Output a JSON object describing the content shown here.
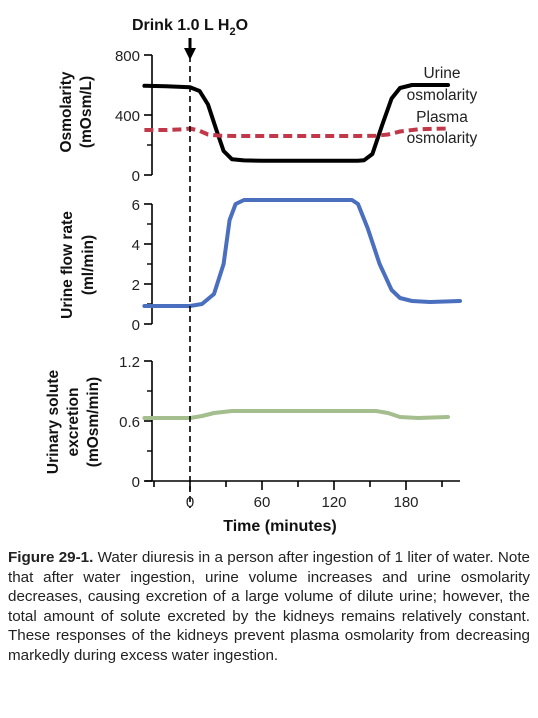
{
  "chart_data": {
    "type": "line",
    "x_label": "Time (minutes)",
    "x_ticks": [
      0,
      60,
      120,
      180
    ],
    "xlim": [
      -40,
      225
    ],
    "annotation": {
      "text": "Drink 1.0 L H",
      "sub": "2",
      "suffix": "O",
      "x": 0
    },
    "panels": [
      {
        "id": "osmolarity",
        "ylabel_lines": [
          "Osmolarity",
          "(mOsm/L)"
        ],
        "ylim": [
          0,
          800
        ],
        "yticks": [
          0,
          400,
          800
        ],
        "series": [
          {
            "name": "Urine osmolarity",
            "label_lines": [
              "Urine",
              "osmolarity"
            ],
            "color": "#000000",
            "dash": "",
            "x": [
              -38,
              -20,
              0,
              8,
              15,
              22,
              28,
              35,
              45,
              60,
              80,
              100,
              120,
              140,
              145,
              152,
              160,
              168,
              175,
              185,
              200,
              215
            ],
            "y": [
              595,
              592,
              585,
              560,
              470,
              300,
              160,
              105,
              97,
              95,
              95,
              95,
              95,
              95,
              98,
              140,
              330,
              510,
              580,
              600,
              600,
              600
            ]
          },
          {
            "name": "Plasma osmolarity",
            "label_lines": [
              "Plasma",
              "osmolarity"
            ],
            "color": "#c0394a",
            "dash": "9,5",
            "x": [
              -38,
              -20,
              -5,
              0,
              8,
              15,
              25,
              40,
              60,
              100,
              140,
              155,
              165,
              175,
              190,
              215
            ],
            "y": [
              300,
              300,
              305,
              310,
              295,
              270,
              262,
              260,
              260,
              260,
              260,
              262,
              270,
              290,
              305,
              310
            ]
          }
        ]
      },
      {
        "id": "flow",
        "ylabel_lines": [
          "Urine flow rate",
          "(ml/min)"
        ],
        "ylim": [
          0,
          6
        ],
        "yticks": [
          0,
          2,
          4,
          6
        ],
        "series": [
          {
            "name": "Urine flow rate",
            "color": "#4a6fbf",
            "dash": "",
            "x": [
              -38,
              -20,
              0,
              10,
              20,
              28,
              33,
              38,
              45,
              60,
              100,
              135,
              140,
              148,
              158,
              168,
              175,
              185,
              200,
              225
            ],
            "y": [
              0.9,
              0.9,
              0.9,
              1.0,
              1.5,
              3.0,
              5.2,
              6.0,
              6.2,
              6.2,
              6.2,
              6.2,
              6.0,
              4.8,
              3.0,
              1.7,
              1.3,
              1.15,
              1.1,
              1.15
            ]
          }
        ]
      },
      {
        "id": "solute",
        "ylabel_lines": [
          "Urinary solute",
          "excretion",
          "(mOsm/min)"
        ],
        "ylim": [
          0,
          1.2
        ],
        "yticks": [
          0,
          0.6,
          1.2
        ],
        "series": [
          {
            "name": "Urinary solute excretion",
            "color": "#a4be8e",
            "dash": "",
            "x": [
              -38,
              0,
              10,
              20,
              35,
              60,
              100,
              140,
              155,
              165,
              175,
              190,
              215
            ],
            "y": [
              0.63,
              0.63,
              0.65,
              0.68,
              0.7,
              0.7,
              0.7,
              0.7,
              0.7,
              0.68,
              0.64,
              0.63,
              0.64
            ]
          }
        ]
      }
    ]
  },
  "caption": {
    "label": "Figure 29-1.",
    "text": " Water diuresis in a person after ingestion of 1 liter of water. Note that after water ingestion, urine volume increases and urine osmolarity decreases, causing excretion of a large volume of dilute urine; however, the total amount of solute excreted by the kidneys remains relatively constant. These responses of the kidneys prevent plasma osmolarity from decreasing markedly during excess water ingestion."
  }
}
